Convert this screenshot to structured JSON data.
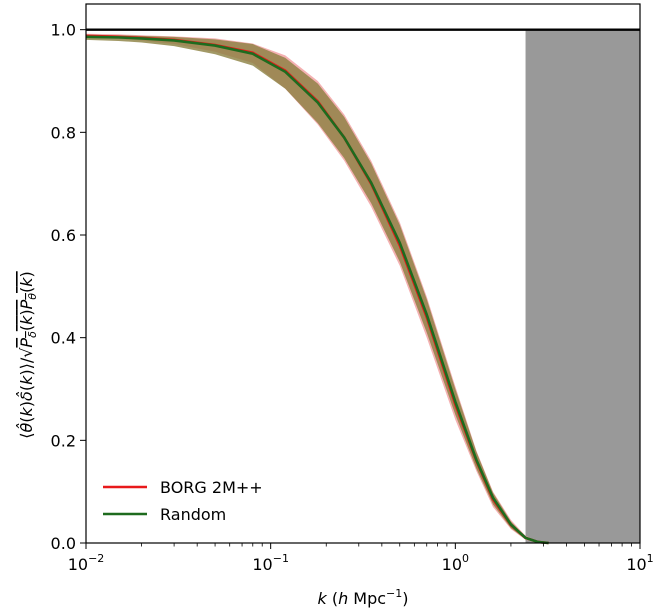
{
  "chart_data": {
    "type": "line",
    "title": "",
    "xlabel": "k (h Mpc⁻¹)",
    "ylabel": "⟨θ̂(k)δ̂(k)⟩/√(P_δ(k)P_θ(k))",
    "xscale": "log",
    "xlim": [
      0.01,
      10
    ],
    "ylim": [
      0.0,
      1.05
    ],
    "x_ticks": [
      {
        "value": 0.01,
        "base": "10",
        "exp": "−2"
      },
      {
        "value": 0.1,
        "base": "10",
        "exp": "−1"
      },
      {
        "value": 1,
        "base": "10",
        "exp": "0"
      },
      {
        "value": 10,
        "base": "10",
        "exp": "1"
      }
    ],
    "y_ticks": [
      "0.0",
      "0.2",
      "0.4",
      "0.6",
      "0.8",
      "1.0"
    ],
    "grid": false,
    "legend_position": "lower-left",
    "reference_line": {
      "y": 1.0,
      "color": "#000000"
    },
    "shaded_region": {
      "x_start": 2.4,
      "x_end": 10,
      "color": "#999999"
    },
    "series": [
      {
        "name": "BORG 2M++",
        "color": "#e8191b",
        "band_color": "#f2a3a5",
        "x": [
          0.01,
          0.015,
          0.02,
          0.03,
          0.05,
          0.08,
          0.12,
          0.18,
          0.25,
          0.35,
          0.5,
          0.7,
          1.0,
          1.3,
          1.6,
          2.0,
          2.4,
          2.8,
          3.2
        ],
        "values": [
          0.988,
          0.986,
          0.984,
          0.98,
          0.97,
          0.955,
          0.92,
          0.86,
          0.79,
          0.7,
          0.58,
          0.44,
          0.27,
          0.16,
          0.085,
          0.035,
          0.01,
          0.002,
          0.0
        ],
        "lower": [
          0.984,
          0.982,
          0.979,
          0.972,
          0.957,
          0.935,
          0.885,
          0.815,
          0.745,
          0.655,
          0.54,
          0.4,
          0.24,
          0.14,
          0.07,
          0.027,
          0.006,
          0.001,
          0.0
        ],
        "upper": [
          0.992,
          0.991,
          0.989,
          0.987,
          0.983,
          0.973,
          0.95,
          0.9,
          0.835,
          0.745,
          0.625,
          0.48,
          0.305,
          0.18,
          0.1,
          0.045,
          0.014,
          0.003,
          0.0
        ]
      },
      {
        "name": "Random",
        "color": "#1e6b1e",
        "band_color": "#8b8040",
        "x": [
          0.01,
          0.015,
          0.02,
          0.03,
          0.05,
          0.08,
          0.12,
          0.18,
          0.25,
          0.35,
          0.5,
          0.7,
          1.0,
          1.3,
          1.6,
          2.0,
          2.4,
          2.8,
          3.2
        ],
        "values": [
          0.986,
          0.985,
          0.983,
          0.979,
          0.969,
          0.953,
          0.918,
          0.858,
          0.79,
          0.702,
          0.585,
          0.445,
          0.275,
          0.162,
          0.088,
          0.036,
          0.01,
          0.002,
          0.0
        ],
        "lower": [
          0.98,
          0.978,
          0.975,
          0.968,
          0.952,
          0.93,
          0.885,
          0.818,
          0.75,
          0.662,
          0.548,
          0.41,
          0.25,
          0.145,
          0.075,
          0.029,
          0.007,
          0.001,
          0.0
        ],
        "upper": [
          0.99,
          0.989,
          0.988,
          0.986,
          0.981,
          0.972,
          0.945,
          0.895,
          0.83,
          0.74,
          0.62,
          0.475,
          0.3,
          0.178,
          0.098,
          0.042,
          0.012,
          0.003,
          0.0
        ]
      }
    ]
  }
}
